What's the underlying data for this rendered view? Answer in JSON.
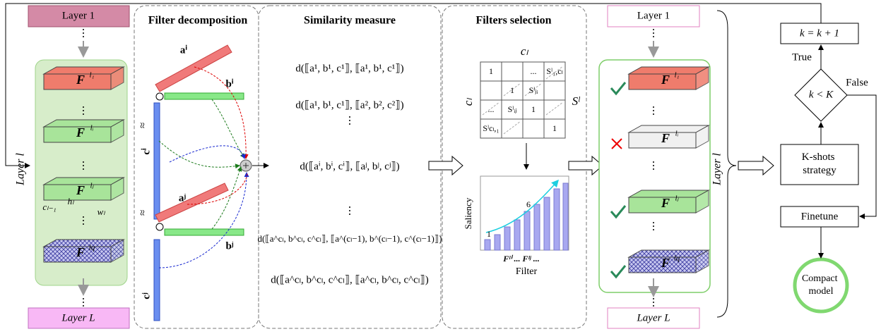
{
  "left_stack": {
    "top_layer": "Layer 1",
    "bottom_layer": "Layer L",
    "side_label": "Layer l",
    "dots": "⋮",
    "filters": [
      {
        "symbol": "F",
        "sup": "l₁"
      },
      {
        "symbol": "F",
        "sup": "lᵢ"
      },
      {
        "symbol": "F",
        "sup": "lⱼ"
      },
      {
        "symbol": "F",
        "sup": "lq"
      }
    ],
    "dims": [
      "cₗ₋₁",
      "hₗ",
      "wₗ"
    ]
  },
  "decomposition": {
    "title": "Filter decomposition",
    "labels": [
      "aⁱ",
      "bⁱ",
      "cⁱ",
      "aʲ",
      "bʲ",
      "cʲ"
    ],
    "approx": "≈"
  },
  "similarity": {
    "title": "Similarity measure",
    "dots": "⋮",
    "formulas": [
      "d(⟦a¹, b¹, c¹⟧, ⟦a¹, b¹, c¹⟧)",
      "d(⟦a¹, b¹, c¹⟧, ⟦a², b², c²⟧)",
      "d(⟦aⁱ, bⁱ, cⁱ⟧, ⟦aʲ, bʲ, cʲ⟧)",
      "d(⟦a^cₗ, b^cₗ, c^cₗ⟧, ⟦a^(cₗ−1), b^(cₗ−1), c^(cₗ−1)⟧)",
      "d(⟦a^cₗ, b^cₗ, c^cₗ⟧, ⟦a^cₗ, b^cₗ, c^cₗ⟧)"
    ]
  },
  "selection": {
    "title": "Filters selection",
    "col_label": "cₗ",
    "row_label": "cₗ",
    "matrix_label": "Sˡ",
    "matrix_cells": [
      "1",
      "...",
      "Sˡ₁,cₗ",
      "1",
      "Sˡⱼᵢ",
      "...",
      "Sˡᵢⱼ",
      "1",
      "Sˡcₗ,₁",
      "1"
    ],
    "chart": {
      "y_label": "Saliency",
      "x_label": "Filter",
      "x_ticks": "Fˡⁱ ...  Fˡʲ ...",
      "annotations": [
        "1",
        "6"
      ]
    }
  },
  "right_stack": {
    "top_layer": "Layer 1",
    "bottom_layer": "Layer L",
    "side_label": "Layer l",
    "dots": "⋮",
    "filters": [
      {
        "symbol": "F",
        "sup": "l₁"
      },
      {
        "symbol": "F",
        "sup": "lᵢ"
      },
      {
        "symbol": "F",
        "sup": "lⱼ"
      },
      {
        "symbol": "F",
        "sup": "lq"
      }
    ]
  },
  "flow": {
    "update": "k = k + 1",
    "condition": "k < K",
    "true_label": "True",
    "false_label": "False",
    "strategy": "K-shots strategy",
    "finetune": "Finetune",
    "result": "Compact model"
  }
}
